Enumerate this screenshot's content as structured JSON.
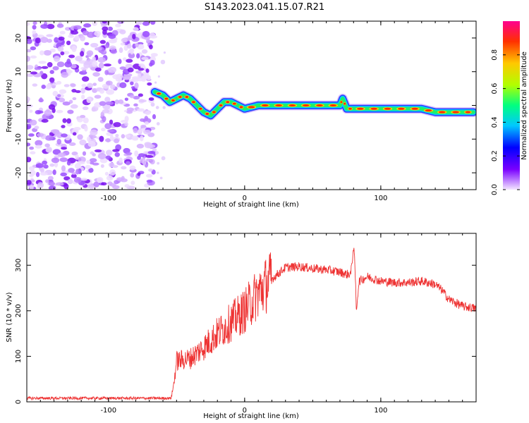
{
  "title": "S143.2023.041.15.07.R21",
  "chart_data": [
    {
      "type": "heatmap",
      "xlabel": "Height of straight line (km)",
      "ylabel": "Frequency (Hz)",
      "xlim": [
        -160,
        170
      ],
      "ylim": [
        -25,
        25
      ],
      "xticks": [
        -100,
        0,
        100
      ],
      "yticks": [
        -20,
        -10,
        0,
        10,
        20
      ],
      "noise_region_x": [
        -160,
        -66
      ],
      "ridge": {
        "x": [
          -66,
          -60,
          -55,
          -50,
          -45,
          -40,
          -35,
          -30,
          -25,
          -20,
          -15,
          -10,
          -5,
          0,
          10,
          20,
          30,
          40,
          50,
          60,
          70,
          72,
          75,
          80,
          90,
          100,
          110,
          120,
          130,
          140,
          150,
          160,
          168
        ],
        "y": [
          4,
          3,
          1,
          2,
          3,
          2,
          0,
          -2,
          -3,
          -1,
          1,
          1,
          0,
          -1,
          0,
          0,
          0,
          0,
          0,
          0,
          0,
          2,
          -1,
          -1,
          -1,
          -1,
          -1,
          -1,
          -1,
          -2,
          -2,
          -2,
          -2
        ]
      },
      "colorbar": {
        "label": "Normalized spectral amplitude",
        "range": [
          0.0,
          1.0
        ],
        "ticks": [
          "0.0",
          "0.2",
          "0.4",
          "0.6",
          "0.8"
        ],
        "colormap": [
          "#f4e6ff",
          "#7a00ff",
          "#0000ff",
          "#00c8ff",
          "#00ff80",
          "#b0ff00",
          "#ffc800",
          "#ff3000",
          "#ff0090"
        ]
      }
    },
    {
      "type": "line",
      "xlabel": "Height of straight line (km)",
      "ylabel": "SNR (10 * v/v)",
      "xlim": [
        -160,
        170
      ],
      "ylim": [
        0,
        370
      ],
      "xticks": [
        -100,
        0,
        100
      ],
      "yticks": [
        0,
        100,
        200,
        300
      ],
      "color": "#ee3333",
      "series": [
        {
          "x": [
            -160,
            -120,
            -80,
            -60,
            -54,
            -52,
            -50,
            -40,
            -30,
            -20,
            -10,
            0,
            10,
            20,
            30,
            40,
            50,
            60,
            70,
            75,
            78,
            80,
            81,
            82,
            84,
            90,
            100,
            110,
            120,
            130,
            140,
            145,
            150,
            160,
            170
          ],
          "y": [
            8,
            8,
            8,
            8,
            8,
            40,
            90,
            95,
            120,
            150,
            175,
            200,
            240,
            270,
            295,
            297,
            293,
            290,
            285,
            280,
            282,
            340,
            300,
            200,
            265,
            275,
            265,
            262,
            262,
            265,
            258,
            245,
            225,
            210,
            205
          ]
        }
      ]
    }
  ]
}
